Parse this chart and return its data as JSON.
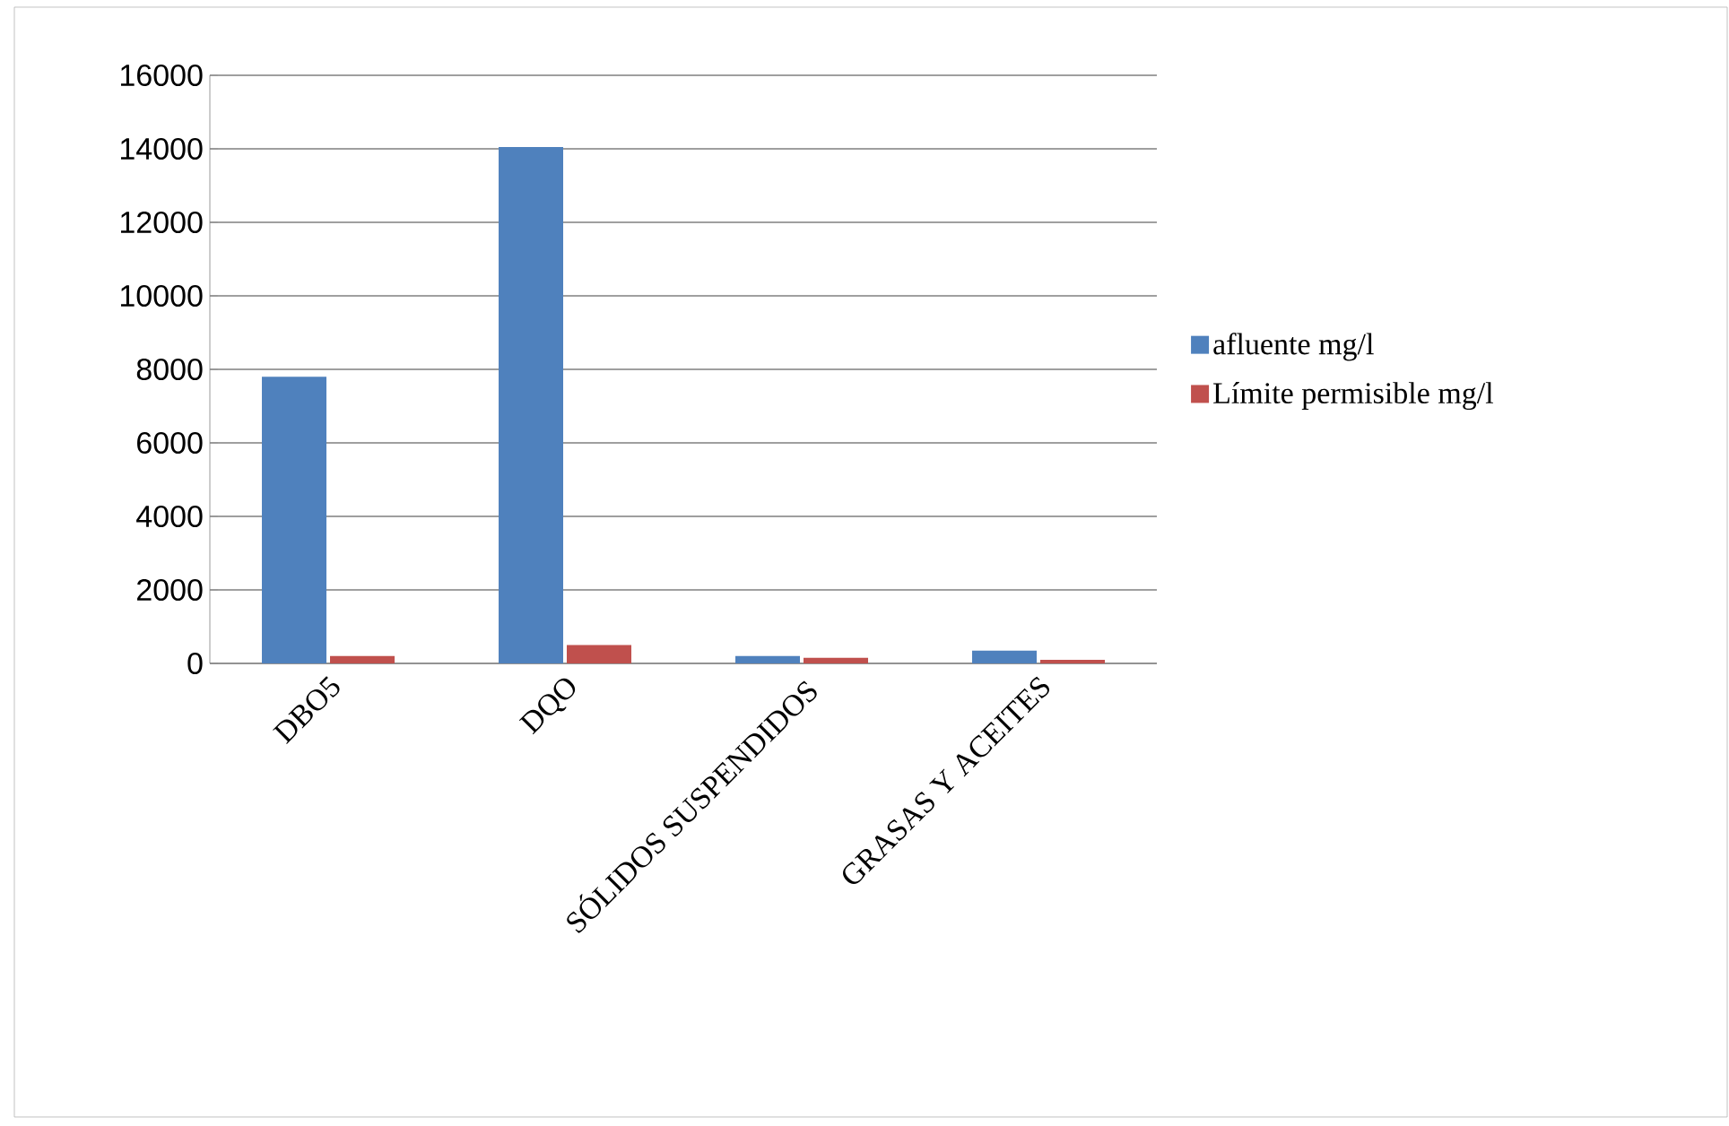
{
  "chart_data": {
    "type": "bar",
    "categories": [
      "DBO5",
      "DQO",
      "SÓLIDOS SUSPENDIDOS",
      "GRASAS Y ACEITES"
    ],
    "series": [
      {
        "name": "afluente mg/l",
        "color": "#4f81bd",
        "values": [
          7800,
          14050,
          200,
          350
        ]
      },
      {
        "name": "Límite permisible mg/l",
        "color": "#c0504d",
        "values": [
          200,
          500,
          150,
          100
        ]
      }
    ],
    "ylim": [
      0,
      16000
    ],
    "yticks": [
      0,
      2000,
      4000,
      6000,
      8000,
      10000,
      12000,
      14000,
      16000
    ],
    "grid": "y",
    "legend": "right"
  }
}
